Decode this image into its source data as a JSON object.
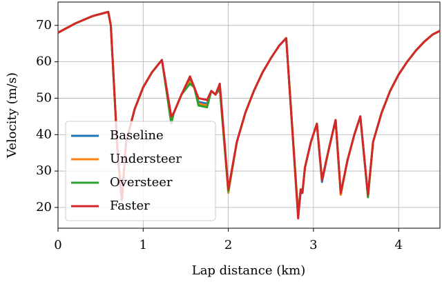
{
  "chart_data": {
    "type": "line",
    "xlabel": "Lap distance (km)",
    "ylabel": "Velocity (m/s)",
    "x": [
      0,
      0.2,
      0.4,
      0.59,
      0.62,
      0.7,
      0.75,
      0.8,
      0.9,
      1.0,
      1.1,
      1.22,
      1.33,
      1.36,
      1.45,
      1.55,
      1.6,
      1.65,
      1.75,
      1.8,
      1.85,
      1.9,
      2.0,
      2.1,
      2.2,
      2.3,
      2.4,
      2.5,
      2.6,
      2.68,
      2.82,
      2.85,
      2.87,
      2.9,
      2.97,
      3.04,
      3.1,
      3.18,
      3.26,
      3.32,
      3.4,
      3.48,
      3.55,
      3.64,
      3.7,
      3.8,
      3.9,
      4.0,
      4.1,
      4.2,
      4.3,
      4.4,
      4.485
    ],
    "series": [
      {
        "name": "Baseline",
        "color": "#1f77b4",
        "values": [
          68,
          70.5,
          72.5,
          73.7,
          70,
          35,
          22,
          38,
          47,
          53,
          57,
          60.5,
          44.5,
          46,
          51,
          55,
          53,
          49,
          48.5,
          52,
          51,
          53.5,
          24.5,
          38,
          46,
          52,
          57,
          61,
          64.5,
          66.5,
          18,
          24,
          24,
          31,
          38,
          43,
          27,
          36,
          44,
          23.5,
          33,
          40,
          45,
          23,
          38,
          46,
          52,
          56.5,
          60,
          63,
          65.5,
          67.5,
          68.5
        ]
      },
      {
        "name": "Understeer",
        "color": "#ff7f0e",
        "values": [
          68,
          70.5,
          72.5,
          73.7,
          70,
          35,
          22,
          38,
          47,
          53,
          57,
          60.5,
          44,
          46,
          51,
          54.5,
          53,
          48.5,
          48,
          52,
          51,
          53,
          24,
          38,
          46,
          52,
          57,
          61,
          64.5,
          66.5,
          18.5,
          25,
          24,
          31,
          38,
          43,
          27.5,
          36,
          44,
          23.5,
          33,
          40,
          45,
          23,
          38,
          46,
          52,
          56.5,
          60,
          63,
          65.5,
          67.5,
          68.5
        ]
      },
      {
        "name": "Oversteer",
        "color": "#2ca02c",
        "values": [
          68,
          70.5,
          72.5,
          73.7,
          70,
          35,
          22,
          38,
          47,
          53,
          57,
          60.5,
          43,
          46,
          51,
          54,
          53,
          48,
          47.5,
          52,
          51,
          52.5,
          24.5,
          38,
          46,
          52,
          57,
          61,
          64.5,
          66.5,
          18,
          25,
          24,
          31,
          38,
          43,
          27.5,
          36,
          44,
          24,
          33,
          40,
          45,
          22.8,
          38,
          46,
          52,
          56.5,
          60,
          63,
          65.5,
          67.5,
          68.5
        ]
      },
      {
        "name": "Faster",
        "color": "#d62728",
        "values": [
          68,
          70.5,
          72.5,
          73.7,
          70,
          35,
          22,
          38,
          47,
          53,
          57,
          60.5,
          45,
          46,
          51,
          56,
          53,
          50,
          49.5,
          52,
          51,
          54,
          25,
          38,
          46,
          52,
          57,
          61,
          64.5,
          66.5,
          17,
          25,
          24,
          31,
          38,
          43,
          27.5,
          36,
          44,
          24,
          33,
          40,
          45,
          23.5,
          38,
          46,
          52,
          56.5,
          60,
          63,
          65.5,
          67.5,
          68.5
        ]
      }
    ],
    "xlim": [
      0,
      4.485
    ],
    "ylim": [
      14.3,
      76.4
    ],
    "xticks": [
      0,
      1,
      2,
      3,
      4
    ],
    "yticks": [
      20,
      30,
      40,
      50,
      60,
      70
    ],
    "grid": true,
    "legend": "lower left"
  }
}
